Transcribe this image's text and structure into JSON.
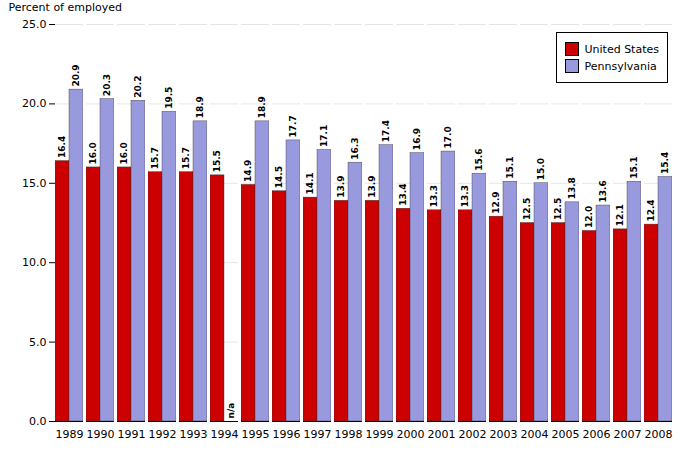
{
  "chart_data": {
    "type": "bar",
    "categories": [
      "1989",
      "1990",
      "1991",
      "1992",
      "1993",
      "1994",
      "1995",
      "1996",
      "1997",
      "1998",
      "1999",
      "2000",
      "2001",
      "2002",
      "2003",
      "2004",
      "2005",
      "2006",
      "2007",
      "2008"
    ],
    "series": [
      {
        "name": "United States",
        "color": "#CC0000",
        "values": [
          16.4,
          16.0,
          16.0,
          15.7,
          15.7,
          15.5,
          14.9,
          14.5,
          14.1,
          13.9,
          13.9,
          13.4,
          13.3,
          13.3,
          12.9,
          12.5,
          12.5,
          12.0,
          12.1,
          12.4
        ],
        "value_labels": [
          "16.4",
          "16.0",
          "16.0",
          "15.7",
          "15.7",
          "15.5",
          "14.9",
          "14.5",
          "14.1",
          "13.9",
          "13.9",
          "13.4",
          "13.3",
          "13.3",
          "12.9",
          "12.5",
          "12.5",
          "12.0",
          "12.1",
          "12.4"
        ]
      },
      {
        "name": "Pennsylvania",
        "color": "#9999DD",
        "values": [
          20.9,
          20.3,
          20.2,
          19.5,
          18.9,
          null,
          18.9,
          17.7,
          17.1,
          16.3,
          17.4,
          16.9,
          17.0,
          15.6,
          15.1,
          15.0,
          13.8,
          13.6,
          15.1,
          15.4
        ],
        "value_labels": [
          "20.9",
          "20.3",
          "20.2",
          "19.5",
          "18.9",
          "n/a",
          "18.9",
          "17.7",
          "17.1",
          "16.3",
          "17.4",
          "16.9",
          "17.0",
          "15.6",
          "15.1",
          "15.0",
          "13.8",
          "13.6",
          "15.1",
          "15.4"
        ]
      }
    ],
    "ylabel": "Percent of employed",
    "ylim": [
      0,
      25.0
    ],
    "yticks": [
      {
        "value": 0,
        "label": "0.0"
      },
      {
        "value": 5,
        "label": "5.0"
      },
      {
        "value": 10,
        "label": "10.0"
      },
      {
        "value": 15,
        "label": "15.0"
      },
      {
        "value": 20,
        "label": "20.0"
      },
      {
        "value": 25,
        "label": "25.0"
      }
    ],
    "grid": true,
    "legend": "upper right",
    "data_labels": true
  }
}
